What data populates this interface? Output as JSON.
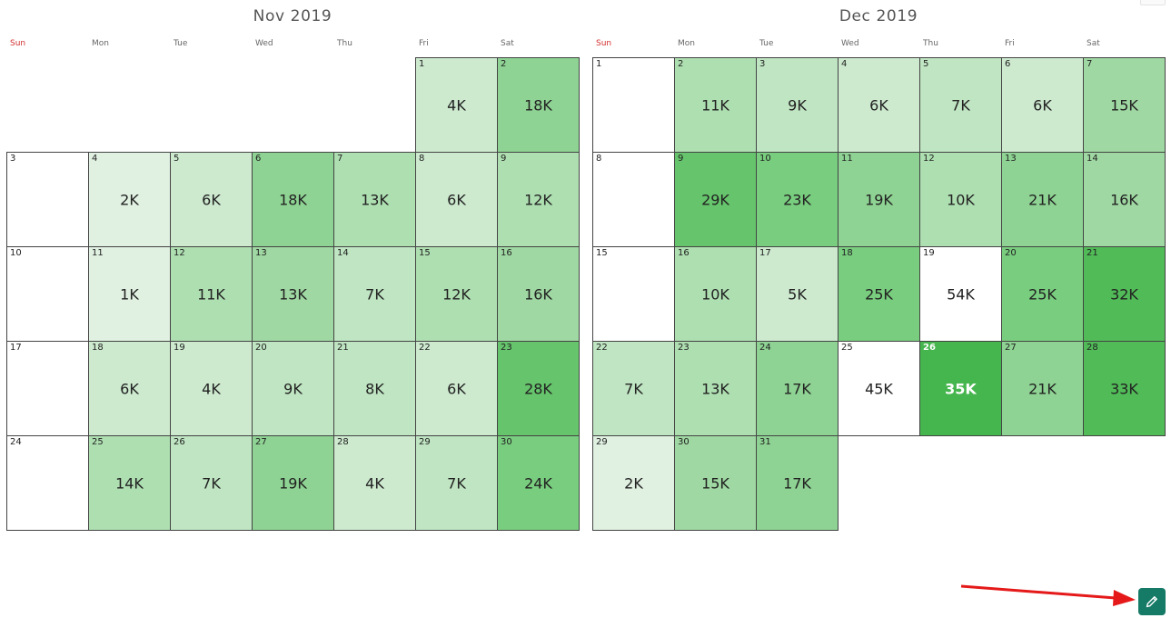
{
  "colors": {
    "scale": [
      "#ffffff",
      "#e0f0e1",
      "#cdeacf",
      "#bfe5c2",
      "#aedfb1",
      "#9fd8a2",
      "#8ed393",
      "#79cd7f",
      "#66c46c",
      "#51bb58",
      "#45b54d"
    ],
    "highlight_text": "#ffffff",
    "sunday_label": "#d32f2f",
    "edit_button": "#157a66",
    "annotation_arrow": "#e51919"
  },
  "calendars": [
    {
      "title": "Nov 2019",
      "days_of_week": [
        "Sun",
        "Mon",
        "Tue",
        "Wed",
        "Thu",
        "Fri",
        "Sat"
      ],
      "weeks": [
        [
          null,
          null,
          null,
          null,
          null,
          {
            "day": "1",
            "value": "4K",
            "level": 2
          },
          {
            "day": "2",
            "value": "18K",
            "level": 6
          }
        ],
        [
          {
            "day": "3",
            "value": "",
            "level": 0
          },
          {
            "day": "4",
            "value": "2K",
            "level": 1
          },
          {
            "day": "5",
            "value": "6K",
            "level": 2
          },
          {
            "day": "6",
            "value": "18K",
            "level": 6
          },
          {
            "day": "7",
            "value": "13K",
            "level": 4
          },
          {
            "day": "8",
            "value": "6K",
            "level": 2
          },
          {
            "day": "9",
            "value": "12K",
            "level": 4
          }
        ],
        [
          {
            "day": "10",
            "value": "",
            "level": 0
          },
          {
            "day": "11",
            "value": "1K",
            "level": 1
          },
          {
            "day": "12",
            "value": "11K",
            "level": 4
          },
          {
            "day": "13",
            "value": "13K",
            "level": 5
          },
          {
            "day": "14",
            "value": "7K",
            "level": 3
          },
          {
            "day": "15",
            "value": "12K",
            "level": 4
          },
          {
            "day": "16",
            "value": "16K",
            "level": 5
          }
        ],
        [
          {
            "day": "17",
            "value": "",
            "level": 0
          },
          {
            "day": "18",
            "value": "6K",
            "level": 2
          },
          {
            "day": "19",
            "value": "4K",
            "level": 2
          },
          {
            "day": "20",
            "value": "9K",
            "level": 3
          },
          {
            "day": "21",
            "value": "8K",
            "level": 3
          },
          {
            "day": "22",
            "value": "6K",
            "level": 2
          },
          {
            "day": "23",
            "value": "28K",
            "level": 8
          }
        ],
        [
          {
            "day": "24",
            "value": "",
            "level": 0
          },
          {
            "day": "25",
            "value": "14K",
            "level": 4
          },
          {
            "day": "26",
            "value": "7K",
            "level": 3
          },
          {
            "day": "27",
            "value": "19K",
            "level": 6
          },
          {
            "day": "28",
            "value": "4K",
            "level": 2
          },
          {
            "day": "29",
            "value": "7K",
            "level": 3
          },
          {
            "day": "30",
            "value": "24K",
            "level": 7
          }
        ]
      ]
    },
    {
      "title": "Dec 2019",
      "days_of_week": [
        "Sun",
        "Mon",
        "Tue",
        "Wed",
        "Thu",
        "Fri",
        "Sat"
      ],
      "weeks": [
        [
          {
            "day": "1",
            "value": "",
            "level": 0
          },
          {
            "day": "2",
            "value": "11K",
            "level": 4
          },
          {
            "day": "3",
            "value": "9K",
            "level": 3
          },
          {
            "day": "4",
            "value": "6K",
            "level": 2
          },
          {
            "day": "5",
            "value": "7K",
            "level": 3
          },
          {
            "day": "6",
            "value": "6K",
            "level": 2
          },
          {
            "day": "7",
            "value": "15K",
            "level": 5
          }
        ],
        [
          {
            "day": "8",
            "value": "",
            "level": 0
          },
          {
            "day": "9",
            "value": "29K",
            "level": 8
          },
          {
            "day": "10",
            "value": "23K",
            "level": 7
          },
          {
            "day": "11",
            "value": "19K",
            "level": 6
          },
          {
            "day": "12",
            "value": "10K",
            "level": 4
          },
          {
            "day": "13",
            "value": "21K",
            "level": 6
          },
          {
            "day": "14",
            "value": "16K",
            "level": 5
          }
        ],
        [
          {
            "day": "15",
            "value": "",
            "level": 0
          },
          {
            "day": "16",
            "value": "10K",
            "level": 4
          },
          {
            "day": "17",
            "value": "5K",
            "level": 2
          },
          {
            "day": "18",
            "value": "25K",
            "level": 7
          },
          {
            "day": "19",
            "value": "54K",
            "level": 0
          },
          {
            "day": "20",
            "value": "25K",
            "level": 7
          },
          {
            "day": "21",
            "value": "32K",
            "level": 9
          }
        ],
        [
          {
            "day": "22",
            "value": "7K",
            "level": 3
          },
          {
            "day": "23",
            "value": "13K",
            "level": 4
          },
          {
            "day": "24",
            "value": "17K",
            "level": 6
          },
          {
            "day": "25",
            "value": "45K",
            "level": 0
          },
          {
            "day": "26",
            "value": "35K",
            "level": 10,
            "highlight": true
          },
          {
            "day": "27",
            "value": "21K",
            "level": 6
          },
          {
            "day": "28",
            "value": "33K",
            "level": 9
          }
        ],
        [
          {
            "day": "29",
            "value": "2K",
            "level": 1
          },
          {
            "day": "30",
            "value": "15K",
            "level": 5
          },
          {
            "day": "31",
            "value": "17K",
            "level": 6
          },
          null,
          null,
          null,
          null
        ]
      ]
    }
  ],
  "edit_button": {
    "icon": "pencil-icon"
  }
}
